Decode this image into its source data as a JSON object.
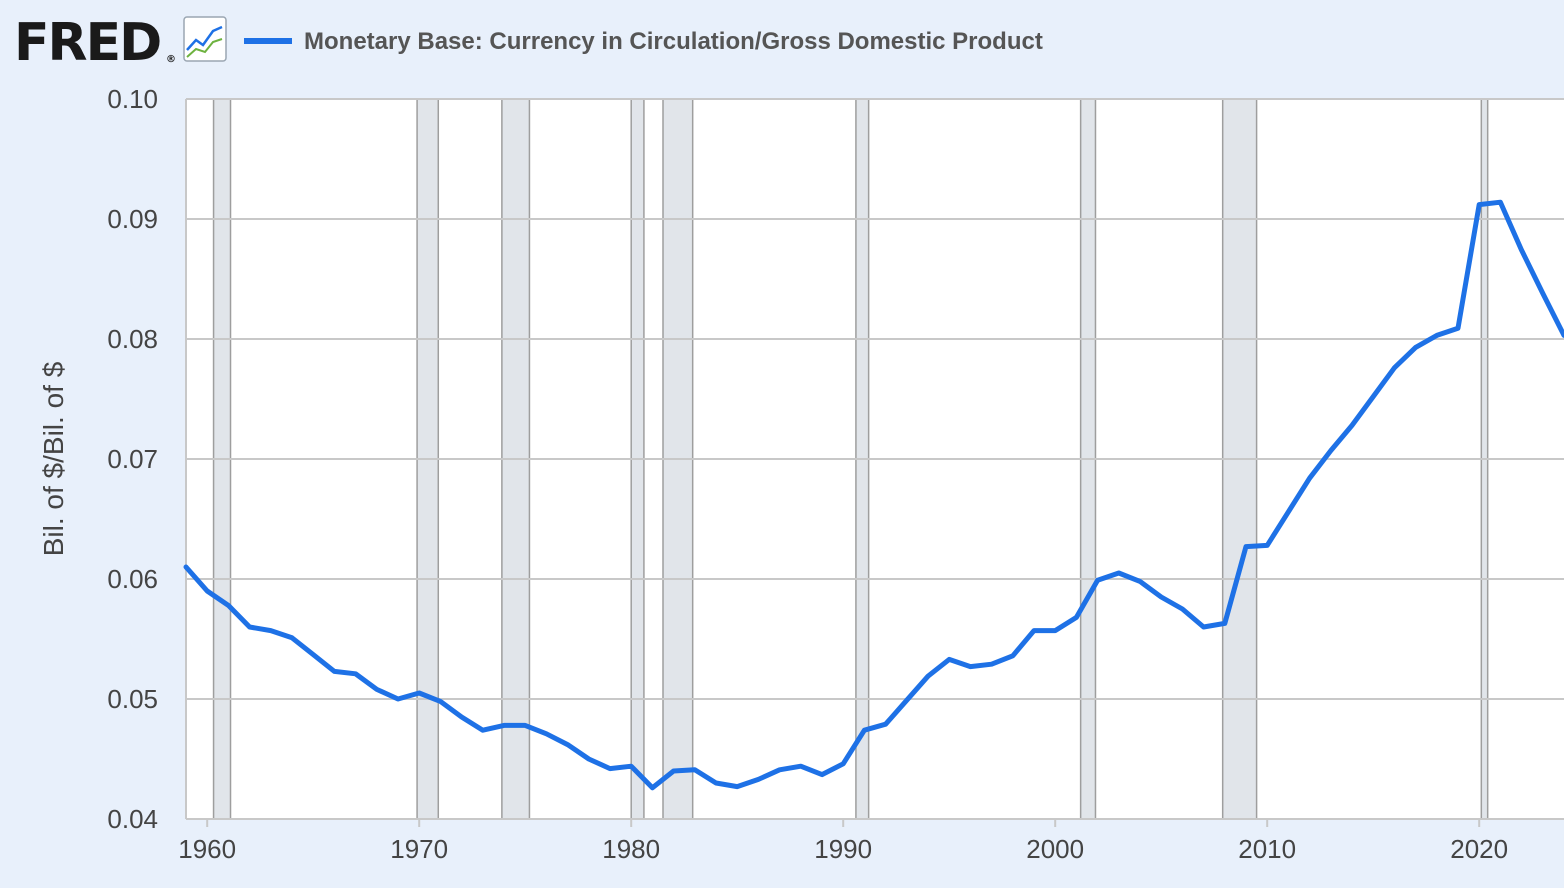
{
  "brand": {
    "logo_text": "FRED",
    "registered_mark": "®",
    "graph_icon": "line-graph-icon"
  },
  "colors": {
    "background": "#e8f0fb",
    "plot_background": "#ffffff",
    "series": "#1e71e6",
    "grid": "#c8c8c8",
    "recession": "#e1e5ea",
    "axis_text": "#444444"
  },
  "chart_data": {
    "type": "line",
    "title": "Monetary Base: Currency in Circulation/Gross Domestic Product",
    "xlabel": "",
    "ylabel": "Bil. of $/Bil. of $",
    "xlim": [
      1959,
      2024
    ],
    "ylim": [
      0.04,
      0.1
    ],
    "yticks": [
      "0.04",
      "0.05",
      "0.06",
      "0.07",
      "0.08",
      "0.09",
      "0.10"
    ],
    "xticks": [
      "1960",
      "1970",
      "1980",
      "1990",
      "2000",
      "2010",
      "2020"
    ],
    "grid": true,
    "recessions": [
      [
        1960.3,
        1961.1
      ],
      [
        1969.9,
        1970.9
      ],
      [
        1973.9,
        1975.2
      ],
      [
        1980.0,
        1980.6
      ],
      [
        1981.5,
        1982.9
      ],
      [
        1990.6,
        1991.2
      ],
      [
        2001.2,
        2001.9
      ],
      [
        2007.9,
        2009.5
      ],
      [
        2020.1,
        2020.4
      ]
    ],
    "series": [
      {
        "name": "Monetary Base: Currency in Circulation/Gross Domestic Product",
        "x": [
          1959,
          1960,
          1961,
          1962,
          1963,
          1964,
          1965,
          1966,
          1967,
          1968,
          1969,
          1970,
          1971,
          1972,
          1973,
          1974,
          1975,
          1976,
          1977,
          1978,
          1979,
          1980,
          1981,
          1982,
          1983,
          1984,
          1985,
          1986,
          1987,
          1988,
          1989,
          1990,
          1991,
          1992,
          1993,
          1994,
          1995,
          1996,
          1997,
          1998,
          1999,
          2000,
          2001,
          2002,
          2003,
          2004,
          2005,
          2006,
          2007,
          2008,
          2009,
          2010,
          2011,
          2012,
          2013,
          2014,
          2015,
          2016,
          2017,
          2018,
          2019,
          2020,
          2021,
          2022,
          2023,
          2024
        ],
        "values": [
          0.061,
          0.059,
          0.0578,
          0.056,
          0.0557,
          0.0551,
          0.0537,
          0.0523,
          0.0521,
          0.0508,
          0.05,
          0.0505,
          0.0498,
          0.0485,
          0.0474,
          0.0478,
          0.0478,
          0.0471,
          0.0462,
          0.045,
          0.0442,
          0.0444,
          0.0426,
          0.044,
          0.0441,
          0.043,
          0.0427,
          0.0433,
          0.0441,
          0.0444,
          0.0437,
          0.0446,
          0.0474,
          0.0479,
          0.0499,
          0.0519,
          0.0533,
          0.0527,
          0.0529,
          0.0536,
          0.0557,
          0.0557,
          0.0568,
          0.0599,
          0.0605,
          0.0598,
          0.0585,
          0.0575,
          0.056,
          0.0563,
          0.0627,
          0.0628,
          0.0656,
          0.0684,
          0.0707,
          0.0728,
          0.0752,
          0.0776,
          0.0793,
          0.0803,
          0.0809,
          0.0912,
          0.0914,
          0.0874,
          0.0838,
          0.0803
        ]
      }
    ]
  }
}
